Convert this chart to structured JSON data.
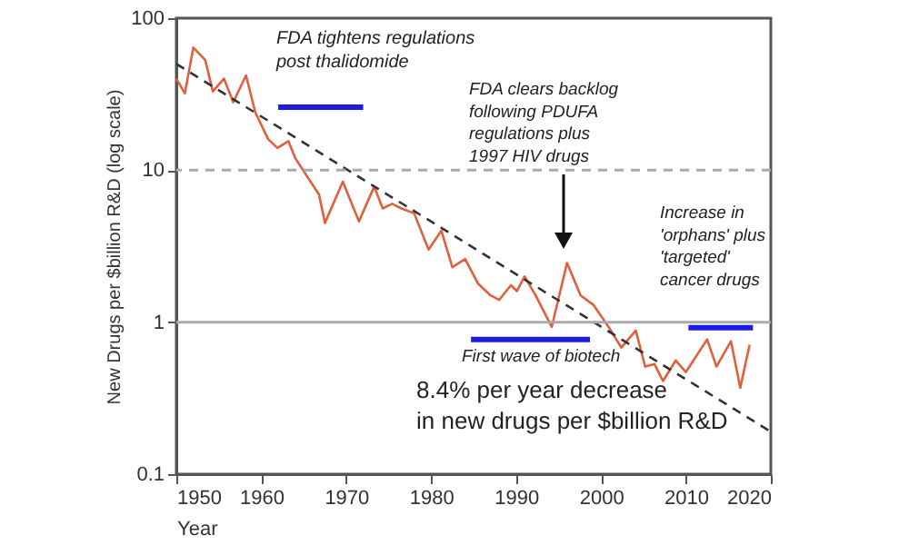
{
  "chart_data": {
    "type": "line",
    "xlabel": "Year",
    "ylabel": "New Drugs per $billion R&D (log scale)",
    "log": "y",
    "xlim": [
      1950,
      2020
    ],
    "ylim": [
      0.1,
      100
    ],
    "xticks": [
      1950,
      1960,
      1970,
      1980,
      1990,
      2000,
      2010,
      2020
    ],
    "yticks": [
      0.1,
      1,
      10,
      100
    ],
    "marker": "none",
    "series": [
      {
        "color": "#e0603c",
        "line_style": "solid",
        "x": [
          1950,
          1951,
          1952,
          1953.4,
          1954.3,
          1955.6,
          1956.7,
          1958.2,
          1959.3,
          1960.8,
          1961.9,
          1963.2,
          1964,
          1966.8,
          1967.5,
          1969.6,
          1971.5,
          1973.3,
          1974.3,
          1975.4,
          1976.5,
          1978,
          1979.7,
          1981.2,
          1982.5,
          1984,
          1985.5,
          1987,
          1988,
          1989.4,
          1990.1,
          1991,
          1992.3,
          1994.2,
          1996,
          1997.6,
          1999.1,
          2000.9,
          2002.4,
          2004.1,
          2005.2,
          2006.3,
          2007.3,
          2008.8,
          2010,
          2012.5,
          2013.6,
          2015.3,
          2016.4,
          2017.5
        ],
        "values": [
          40,
          32,
          64,
          53,
          33,
          40,
          28,
          42,
          24,
          16,
          14,
          15.5,
          12,
          6.9,
          4.5,
          8.4,
          4.6,
          7.8,
          5.6,
          6.0,
          5.6,
          5.2,
          3.0,
          4.0,
          2.3,
          2.6,
          1.8,
          1.5,
          1.4,
          1.75,
          1.6,
          2.0,
          1.5,
          0.93,
          2.45,
          1.5,
          1.3,
          0.93,
          0.68,
          0.88,
          0.51,
          0.53,
          0.41,
          0.56,
          0.47,
          0.77,
          0.51,
          0.75,
          0.37,
          0.71
        ]
      },
      {
        "type": "line",
        "color": "#333333",
        "line_style": "dashed",
        "x": [
          1950,
          2020
        ],
        "values": [
          50,
          0.19
        ]
      },
      {
        "type": "line",
        "color": "#1c1ce0",
        "line_style": "solid",
        "x": [
          1962,
          1972
        ],
        "values": [
          26,
          26
        ]
      },
      {
        "type": "line",
        "color": "#1c1ce0",
        "line_style": "solid",
        "x": [
          1984.7,
          1998.7
        ],
        "values": [
          0.77,
          0.77
        ]
      },
      {
        "type": "line",
        "color": "#1c1ce0",
        "line_style": "solid",
        "x": [
          2010.3,
          2017.9
        ],
        "values": [
          0.92,
          0.92
        ]
      }
    ],
    "ref_lines": [
      {
        "axis": "y",
        "value": 10,
        "color": "#aaaaaa",
        "line_style": "dashed"
      },
      {
        "axis": "y",
        "value": 1,
        "color": "#aaaaaa",
        "line_style": "solid"
      }
    ],
    "annotations": [
      "FDA tightens regulations\npost thalidomide",
      "FDA clears backlog\nfollowing PDUFA\nregulations plus\n1997 HIV drugs",
      "Increase in\n'orphans' plus\n'targeted'\ncancer drugs",
      "First wave of biotech",
      "8.4% per year decrease\nin new drugs per $billion R&D"
    ]
  }
}
